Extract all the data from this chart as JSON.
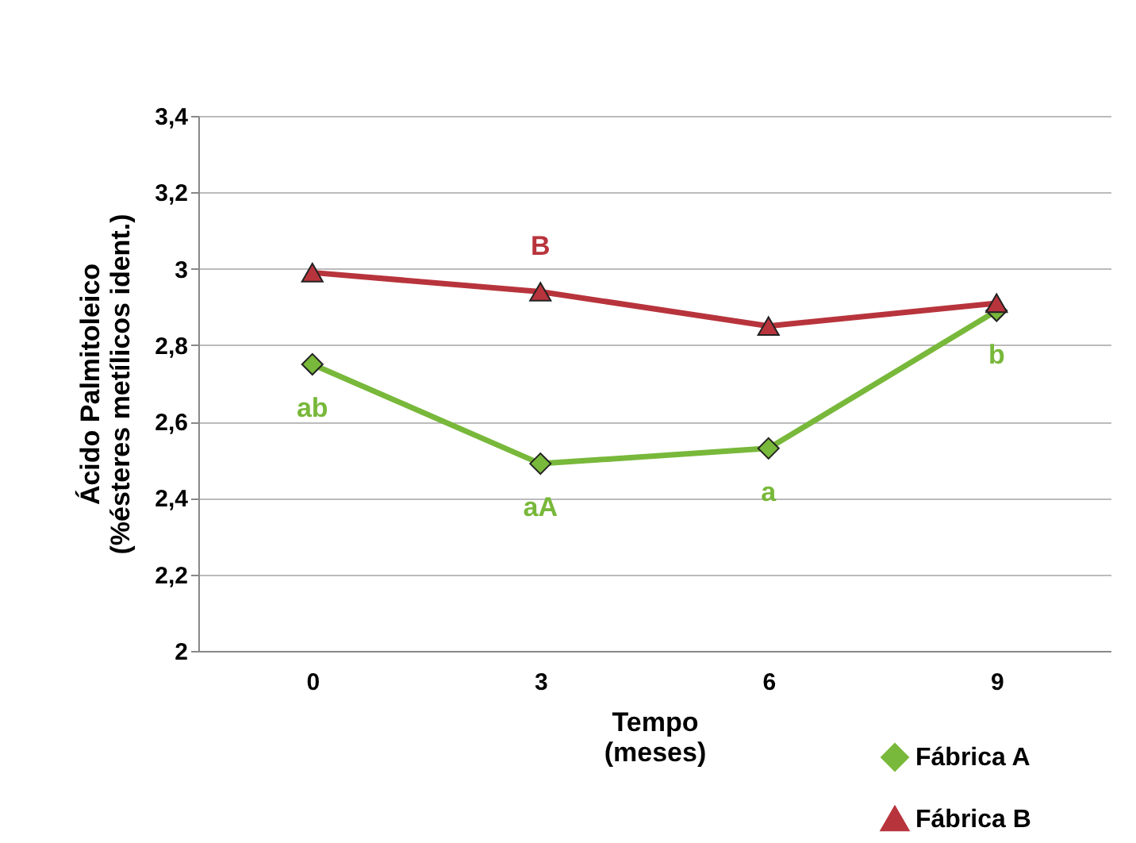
{
  "chart_data": {
    "type": "line",
    "xlabel": "Tempo\n(meses)",
    "ylabel": "Ácido Palmitoleico\n(%ésteres metílicos ident.)",
    "categories": [
      "0",
      "3",
      "6",
      "9"
    ],
    "series": [
      {
        "name": "Fábrica A",
        "color": "#78b83a",
        "marker": "diamond",
        "values": [
          2.75,
          2.49,
          2.53,
          2.89
        ]
      },
      {
        "name": "Fábrica B",
        "color": "#b8343c",
        "marker": "triangle",
        "values": [
          2.99,
          2.94,
          2.85,
          2.91
        ]
      }
    ],
    "ylim": [
      2,
      3.4
    ],
    "yticks": [
      {
        "value": 2,
        "label": "2"
      },
      {
        "value": 2.2,
        "label": "2,2"
      },
      {
        "value": 2.4,
        "label": "2,4"
      },
      {
        "value": 2.6,
        "label": "2,6"
      },
      {
        "value": 2.8,
        "label": "2,8"
      },
      {
        "value": 3,
        "label": "3"
      },
      {
        "value": 3.2,
        "label": "3,2"
      },
      {
        "value": 3.4,
        "label": "3,4"
      }
    ],
    "grid": "y",
    "legend": "bottom right",
    "annotations": [
      {
        "text": "ab",
        "x": "0",
        "y": 2.75
      },
      {
        "text": "aA",
        "x": "3",
        "y": 2.49
      },
      {
        "text": "a",
        "x": "6",
        "y": 2.53
      },
      {
        "text": "b",
        "x": "9",
        "y": 2.89
      },
      {
        "text": "B",
        "x": "3",
        "y": 2.94
      }
    ]
  }
}
